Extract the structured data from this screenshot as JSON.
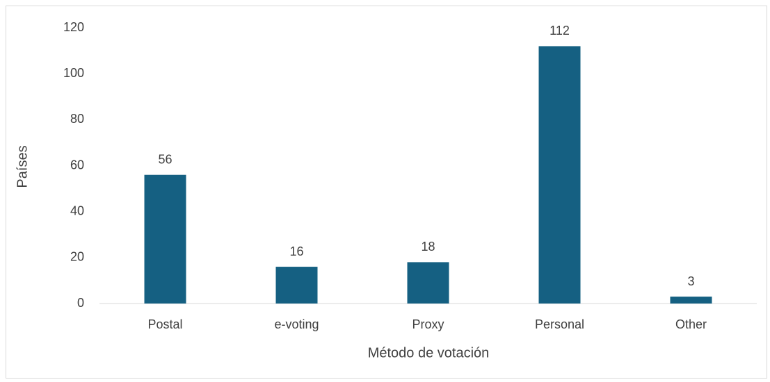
{
  "chart_data": {
    "type": "bar",
    "x_label": "Método de votación",
    "y_label": "Países",
    "categories": [
      "Postal",
      "e-voting",
      "Proxy",
      "Personal",
      "Other"
    ],
    "values": [
      56,
      16,
      18,
      112,
      3
    ],
    "color": "#156082",
    "ylim": [
      0,
      120
    ],
    "yticks": [
      0,
      20,
      40,
      60,
      80,
      100,
      120
    ],
    "grid": false,
    "data_labels": true
  }
}
